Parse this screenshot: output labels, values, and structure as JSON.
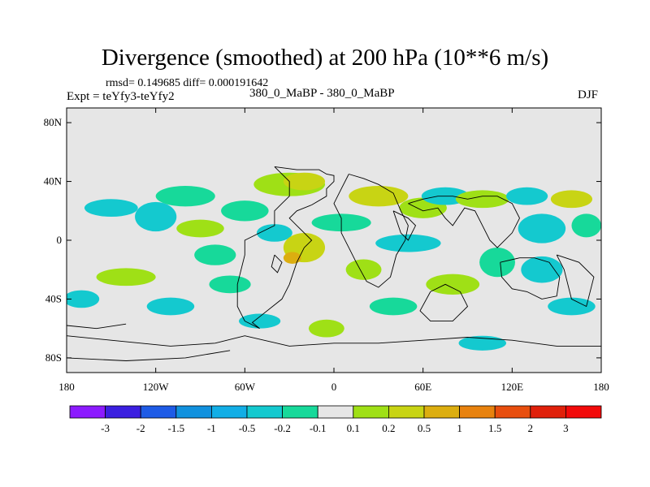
{
  "chart_data": {
    "type": "heatmap",
    "title": "Divergence (smoothed) at 200 hPa (10**6 m/s)",
    "stats": "rmsd= 0.149685 diff= 0.000191642",
    "experiment": "Expt = teYfy3-teYfy2",
    "case": "380_0_MaBP - 380_0_MaBP",
    "season": "DJF",
    "x_ticks": [
      {
        "value": -180,
        "label": "180"
      },
      {
        "value": -120,
        "label": "120W"
      },
      {
        "value": -60,
        "label": "60W"
      },
      {
        "value": 0,
        "label": "0"
      },
      {
        "value": 60,
        "label": "60E"
      },
      {
        "value": 120,
        "label": "120E"
      },
      {
        "value": 180,
        "label": "180"
      }
    ],
    "y_ticks": [
      {
        "value": 80,
        "label": "80N"
      },
      {
        "value": 40,
        "label": "40N"
      },
      {
        "value": 0,
        "label": "0"
      },
      {
        "value": -40,
        "label": "40S"
      },
      {
        "value": -80,
        "label": "80S"
      }
    ],
    "xlim": [
      -180,
      180
    ],
    "ylim": [
      -90,
      90
    ],
    "background_color": "#e6e6e6",
    "colorbar": {
      "labels": [
        "-3",
        "-2",
        "-1.5",
        "-1",
        "-0.5",
        "-0.2",
        "-0.1",
        "0.1",
        "0.2",
        "0.5",
        "1",
        "1.5",
        "2",
        "3"
      ],
      "colors": [
        "#8c1aff",
        "#3b1fe0",
        "#1e5be6",
        "#1191de",
        "#12aee6",
        "#14c9cf",
        "#17d99a",
        "#e6e6e6",
        "#9fe016",
        "#c8d414",
        "#dcae10",
        "#e8820e",
        "#e84e0e",
        "#e0200a",
        "#f20a0a"
      ]
    },
    "blobs": [
      {
        "lon": -150,
        "lat": 22,
        "rx": 18,
        "ry": 6,
        "color": "#14c9cf"
      },
      {
        "lon": -120,
        "lat": 16,
        "rx": 14,
        "ry": 10,
        "color": "#14c9cf"
      },
      {
        "lon": -100,
        "lat": 30,
        "rx": 20,
        "ry": 7,
        "color": "#17d99a"
      },
      {
        "lon": -90,
        "lat": 8,
        "rx": 16,
        "ry": 6,
        "color": "#9fe016"
      },
      {
        "lon": -60,
        "lat": 20,
        "rx": 16,
        "ry": 7,
        "color": "#17d99a"
      },
      {
        "lon": -40,
        "lat": 5,
        "rx": 12,
        "ry": 6,
        "color": "#14c9cf"
      },
      {
        "lon": -30,
        "lat": 38,
        "rx": 24,
        "ry": 8,
        "color": "#9fe016"
      },
      {
        "lon": -20,
        "lat": 40,
        "rx": 14,
        "ry": 6,
        "color": "#c8d414"
      },
      {
        "lon": -20,
        "lat": -5,
        "rx": 14,
        "ry": 10,
        "color": "#c8d414"
      },
      {
        "lon": -28,
        "lat": -12,
        "rx": 6,
        "ry": 4,
        "color": "#dcae10"
      },
      {
        "lon": 5,
        "lat": 12,
        "rx": 20,
        "ry": 6,
        "color": "#17d99a"
      },
      {
        "lon": 30,
        "lat": 30,
        "rx": 20,
        "ry": 7,
        "color": "#c8d414"
      },
      {
        "lon": 50,
        "lat": -2,
        "rx": 22,
        "ry": 6,
        "color": "#14c9cf"
      },
      {
        "lon": 60,
        "lat": 22,
        "rx": 16,
        "ry": 7,
        "color": "#9fe016"
      },
      {
        "lon": 75,
        "lat": 30,
        "rx": 16,
        "ry": 6,
        "color": "#14c9cf"
      },
      {
        "lon": 100,
        "lat": 28,
        "rx": 18,
        "ry": 6,
        "color": "#9fe016"
      },
      {
        "lon": 130,
        "lat": 30,
        "rx": 14,
        "ry": 6,
        "color": "#14c9cf"
      },
      {
        "lon": 160,
        "lat": 28,
        "rx": 14,
        "ry": 6,
        "color": "#c8d414"
      },
      {
        "lon": 140,
        "lat": 8,
        "rx": 16,
        "ry": 10,
        "color": "#14c9cf"
      },
      {
        "lon": 170,
        "lat": 10,
        "rx": 10,
        "ry": 8,
        "color": "#17d99a"
      },
      {
        "lon": 110,
        "lat": -15,
        "rx": 12,
        "ry": 10,
        "color": "#17d99a"
      },
      {
        "lon": 140,
        "lat": -20,
        "rx": 14,
        "ry": 9,
        "color": "#14c9cf"
      },
      {
        "lon": 80,
        "lat": -30,
        "rx": 18,
        "ry": 7,
        "color": "#9fe016"
      },
      {
        "lon": -140,
        "lat": -25,
        "rx": 20,
        "ry": 6,
        "color": "#9fe016"
      },
      {
        "lon": -110,
        "lat": -45,
        "rx": 16,
        "ry": 6,
        "color": "#14c9cf"
      },
      {
        "lon": -70,
        "lat": -30,
        "rx": 14,
        "ry": 6,
        "color": "#17d99a"
      },
      {
        "lon": -50,
        "lat": -55,
        "rx": 14,
        "ry": 5,
        "color": "#14c9cf"
      },
      {
        "lon": -5,
        "lat": -60,
        "rx": 12,
        "ry": 6,
        "color": "#9fe016"
      },
      {
        "lon": 40,
        "lat": -45,
        "rx": 16,
        "ry": 6,
        "color": "#17d99a"
      },
      {
        "lon": 100,
        "lat": -70,
        "rx": 16,
        "ry": 5,
        "color": "#14c9cf"
      },
      {
        "lon": 160,
        "lat": -45,
        "rx": 16,
        "ry": 6,
        "color": "#14c9cf"
      },
      {
        "lon": -170,
        "lat": -40,
        "rx": 12,
        "ry": 6,
        "color": "#14c9cf"
      },
      {
        "lon": 20,
        "lat": -20,
        "rx": 12,
        "ry": 7,
        "color": "#9fe016"
      },
      {
        "lon": -80,
        "lat": -10,
        "rx": 14,
        "ry": 7,
        "color": "#17d99a"
      }
    ],
    "coastlines": [
      [
        [
          -40,
          50
        ],
        [
          -25,
          48
        ],
        [
          -10,
          48
        ],
        [
          -5,
          45
        ],
        [
          0,
          44
        ],
        [
          0,
          40
        ],
        [
          -5,
          35
        ],
        [
          -5,
          30
        ],
        [
          -15,
          24
        ],
        [
          -25,
          20
        ],
        [
          -30,
          15
        ],
        [
          -25,
          10
        ],
        [
          -20,
          5
        ],
        [
          -15,
          0
        ],
        [
          -20,
          -5
        ],
        [
          -25,
          -15
        ],
        [
          -30,
          -30
        ],
        [
          -35,
          -40
        ],
        [
          -50,
          -52
        ],
        [
          -55,
          -56
        ],
        [
          -50,
          -60
        ],
        [
          -60,
          -55
        ],
        [
          -65,
          -45
        ],
        [
          -65,
          -30
        ],
        [
          -60,
          -10
        ],
        [
          -60,
          0
        ],
        [
          -50,
          5
        ],
        [
          -40,
          10
        ],
        [
          -40,
          20
        ],
        [
          -35,
          25
        ],
        [
          -30,
          30
        ],
        [
          -30,
          40
        ],
        [
          -40,
          50
        ]
      ],
      [
        [
          10,
          45
        ],
        [
          20,
          42
        ],
        [
          30,
          38
        ],
        [
          40,
          32
        ],
        [
          45,
          20
        ],
        [
          50,
          10
        ],
        [
          48,
          0
        ],
        [
          42,
          -10
        ],
        [
          38,
          -25
        ],
        [
          30,
          -32
        ],
        [
          22,
          -28
        ],
        [
          15,
          -15
        ],
        [
          10,
          -5
        ],
        [
          5,
          5
        ],
        [
          5,
          15
        ],
        [
          0,
          25
        ],
        [
          5,
          35
        ],
        [
          10,
          45
        ]
      ],
      [
        [
          50,
          25
        ],
        [
          60,
          20
        ],
        [
          70,
          22
        ],
        [
          75,
          15
        ],
        [
          80,
          10
        ],
        [
          88,
          22
        ],
        [
          95,
          20
        ],
        [
          100,
          10
        ],
        [
          105,
          0
        ],
        [
          110,
          -5
        ],
        [
          120,
          5
        ],
        [
          125,
          15
        ],
        [
          120,
          25
        ],
        [
          110,
          30
        ],
        [
          100,
          30
        ],
        [
          90,
          28
        ],
        [
          80,
          30
        ],
        [
          70,
          30
        ],
        [
          60,
          28
        ],
        [
          50,
          25
        ]
      ],
      [
        [
          40,
          20
        ],
        [
          50,
          15
        ],
        [
          55,
          10
        ],
        [
          50,
          0
        ],
        [
          45,
          5
        ],
        [
          40,
          20
        ]
      ],
      [
        [
          112,
          -15
        ],
        [
          125,
          -12
        ],
        [
          135,
          -12
        ],
        [
          145,
          -15
        ],
        [
          152,
          -25
        ],
        [
          150,
          -38
        ],
        [
          140,
          -40
        ],
        [
          130,
          -35
        ],
        [
          120,
          -33
        ],
        [
          113,
          -25
        ],
        [
          112,
          -15
        ]
      ],
      [
        [
          65,
          -35
        ],
        [
          75,
          -30
        ],
        [
          85,
          -35
        ],
        [
          90,
          -45
        ],
        [
          80,
          -55
        ],
        [
          65,
          -55
        ],
        [
          58,
          -48
        ],
        [
          65,
          -35
        ]
      ],
      [
        [
          150,
          -10
        ],
        [
          165,
          -15
        ],
        [
          175,
          -25
        ],
        [
          170,
          -45
        ],
        [
          160,
          -40
        ],
        [
          155,
          -20
        ],
        [
          150,
          -10
        ]
      ],
      [
        [
          -40,
          -10
        ],
        [
          -35,
          -15
        ],
        [
          -38,
          -22
        ],
        [
          -42,
          -18
        ],
        [
          -40,
          -10
        ]
      ],
      [
        [
          -180,
          -65
        ],
        [
          -150,
          -68
        ],
        [
          -110,
          -72
        ],
        [
          -80,
          -70
        ],
        [
          -60,
          -65
        ],
        [
          -30,
          -72
        ],
        [
          0,
          -70
        ],
        [
          30,
          -70
        ],
        [
          60,
          -68
        ],
        [
          90,
          -66
        ],
        [
          120,
          -68
        ],
        [
          150,
          -72
        ],
        [
          180,
          -72
        ],
        [
          180,
          -90
        ],
        [
          -180,
          -90
        ],
        [
          -180,
          -65
        ]
      ],
      [
        [
          -180,
          -80
        ],
        [
          -140,
          -82
        ],
        [
          -100,
          -80
        ],
        [
          -70,
          -75
        ]
      ],
      [
        [
          -180,
          -58
        ],
        [
          -160,
          -60
        ],
        [
          -140,
          -57
        ]
      ]
    ]
  }
}
